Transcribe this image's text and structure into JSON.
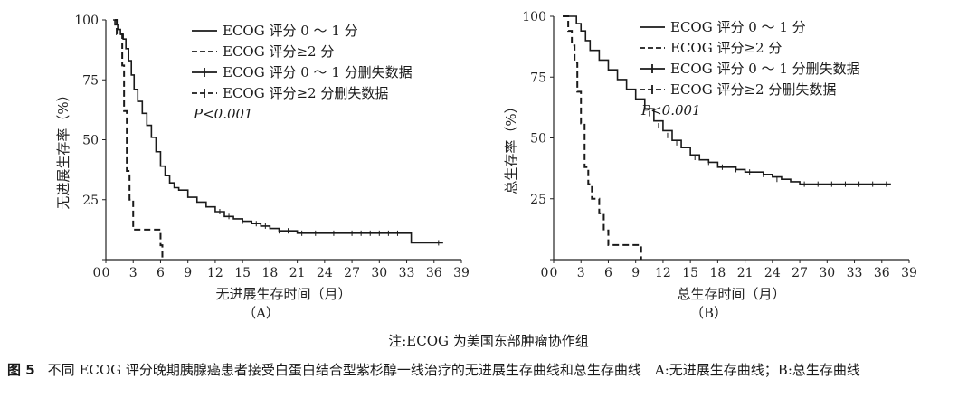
{
  "chart_data": [
    {
      "type": "line",
      "panel_label": "（A）",
      "xlabel": "无进展生存时间（月）",
      "ylabel": "无进展生存率（%）",
      "xlim": [
        0,
        39
      ],
      "ylim": [
        0,
        100
      ],
      "x_ticks": [
        "0",
        "3",
        "6",
        "9",
        "12",
        "15",
        "18",
        "21",
        "24",
        "27",
        "30",
        "33",
        "36",
        "39"
      ],
      "y_ticks": [
        "0",
        "25",
        "50",
        "75",
        "100"
      ],
      "legend": [
        "ECOG 评分 0 ～ 1 分",
        "ECOG 评分≥2 分",
        "ECOG 评分 0 ～ 1 分删失数据",
        "ECOG 评分≥2 分删失数据"
      ],
      "legend_position": "top-right",
      "annotation": "P<0.001",
      "series": [
        {
          "name": "ECOG 评分 0 ～ 1 分",
          "style": "solid",
          "x": [
            0.8,
            1.0,
            1.3,
            1.6,
            1.9,
            2.2,
            2.5,
            2.8,
            3.1,
            3.5,
            4.0,
            4.5,
            5.0,
            5.5,
            6.0,
            6.5,
            7.0,
            7.5,
            8.0,
            9.0,
            10.0,
            11.0,
            12.0,
            13.0,
            14.0,
            15.0,
            16.0,
            17.0,
            18.0,
            19.0,
            20.0,
            21.0,
            22.0,
            24.0,
            27.0,
            30.0,
            33.0,
            33.5,
            37.0
          ],
          "y": [
            100,
            98,
            96,
            94,
            92,
            88,
            83,
            77,
            71,
            66,
            61,
            56,
            51,
            45,
            39,
            35,
            32,
            30,
            29,
            26,
            24,
            22,
            20,
            18,
            17,
            16,
            15,
            14,
            13,
            12,
            12,
            11,
            11,
            11,
            11,
            11,
            11,
            7,
            7
          ]
        },
        {
          "name": "ECOG 评分≥2 分",
          "style": "dashed",
          "x": [
            1.0,
            1.2,
            1.5,
            1.8,
            2.0,
            2.3,
            2.6,
            3.0,
            3.5,
            6.0,
            6.2
          ],
          "y": [
            100,
            94,
            94,
            81,
            62,
            37,
            25,
            12.5,
            12.5,
            6,
            0
          ]
        }
      ],
      "censor_marks": {
        "ECOG 评分 0 ～ 1 分": [
          {
            "x": 12.5,
            "y": 20
          },
          {
            "x": 13.5,
            "y": 18
          },
          {
            "x": 15.0,
            "y": 16
          },
          {
            "x": 16.5,
            "y": 15
          },
          {
            "x": 17.5,
            "y": 14
          },
          {
            "x": 19.0,
            "y": 12
          },
          {
            "x": 20.0,
            "y": 12
          },
          {
            "x": 21.5,
            "y": 11
          },
          {
            "x": 23.0,
            "y": 11
          },
          {
            "x": 25.0,
            "y": 11
          },
          {
            "x": 27.0,
            "y": 11
          },
          {
            "x": 28.0,
            "y": 11
          },
          {
            "x": 29.0,
            "y": 11
          },
          {
            "x": 30.0,
            "y": 11
          },
          {
            "x": 31.0,
            "y": 11
          },
          {
            "x": 32.0,
            "y": 11
          },
          {
            "x": 36.5,
            "y": 7
          }
        ],
        "ECOG 评分≥2 分": []
      }
    },
    {
      "type": "line",
      "panel_label": "（B）",
      "xlabel": "总生存时间（月）",
      "ylabel": "总生存率（%）",
      "xlim": [
        0,
        39
      ],
      "ylim": [
        0,
        100
      ],
      "x_ticks": [
        "0",
        "3",
        "6",
        "9",
        "12",
        "15",
        "18",
        "21",
        "24",
        "27",
        "30",
        "33",
        "36",
        "39"
      ],
      "y_ticks": [
        "0",
        "25",
        "50",
        "75",
        "100"
      ],
      "legend": [
        "ECOG 评分 0 ～ 1 分",
        "ECOG 评分≥2 分",
        "ECOG 评分 0 ～ 1 分删失数据",
        "ECOG 评分≥2 分删失数据"
      ],
      "legend_position": "top-right",
      "annotation": "P<0.001",
      "series": [
        {
          "name": "ECOG 评分 0 ～ 1 分",
          "style": "solid",
          "x": [
            1.0,
            2.0,
            2.5,
            3.0,
            3.5,
            4.0,
            5.0,
            6.0,
            7.0,
            8.0,
            9.0,
            10.0,
            11.0,
            12.0,
            13.0,
            14.0,
            15.0,
            16.0,
            17.0,
            18.0,
            19.0,
            20.0,
            21.0,
            22.0,
            23.0,
            24.0,
            25.0,
            26.0,
            27.0,
            30.0,
            33.0,
            36.0,
            37.0
          ],
          "y": [
            100,
            100,
            97,
            94,
            90,
            86,
            82,
            78,
            74,
            70,
            66,
            62,
            57,
            53,
            49,
            46,
            43,
            41,
            40,
            38,
            38,
            37,
            36,
            36,
            35,
            34,
            33,
            32,
            31,
            31,
            31,
            31,
            31
          ]
        },
        {
          "name": "ECOG 评分≥2 分",
          "style": "dashed",
          "x": [
            1.0,
            1.6,
            2.0,
            2.3,
            2.6,
            3.0,
            3.4,
            3.8,
            4.2,
            5.0,
            5.5,
            6.0,
            9.5,
            9.6
          ],
          "y": [
            100,
            94,
            88,
            81,
            69,
            56,
            38,
            31,
            25,
            19,
            12,
            6,
            6,
            0
          ]
        }
      ],
      "censor_marks": {
        "ECOG 评分 0 ～ 1 分": [
          {
            "x": 10.5,
            "y": 60
          },
          {
            "x": 11.5,
            "y": 55
          },
          {
            "x": 12.5,
            "y": 51
          },
          {
            "x": 13.5,
            "y": 48
          },
          {
            "x": 15.5,
            "y": 42
          },
          {
            "x": 17.0,
            "y": 40
          },
          {
            "x": 18.5,
            "y": 38
          },
          {
            "x": 20.0,
            "y": 37
          },
          {
            "x": 21.5,
            "y": 36
          },
          {
            "x": 23.0,
            "y": 35
          },
          {
            "x": 24.5,
            "y": 33
          },
          {
            "x": 27.5,
            "y": 31
          },
          {
            "x": 29.0,
            "y": 31
          },
          {
            "x": 30.5,
            "y": 31
          },
          {
            "x": 32.0,
            "y": 31
          },
          {
            "x": 33.5,
            "y": 31
          },
          {
            "x": 35.0,
            "y": 31
          },
          {
            "x": 36.5,
            "y": 31
          }
        ],
        "ECOG 评分≥2 分": []
      }
    }
  ],
  "footnote": "注:ECOG 为美国东部肿瘤协作组",
  "caption": {
    "label": "图 5",
    "text": "不同 ECOG 评分晚期胰腺癌患者接受白蛋白结合型紫杉醇一线治疗的无进展生存曲线和总生存曲线　A:无进展生存曲线；B:总生存曲线"
  }
}
